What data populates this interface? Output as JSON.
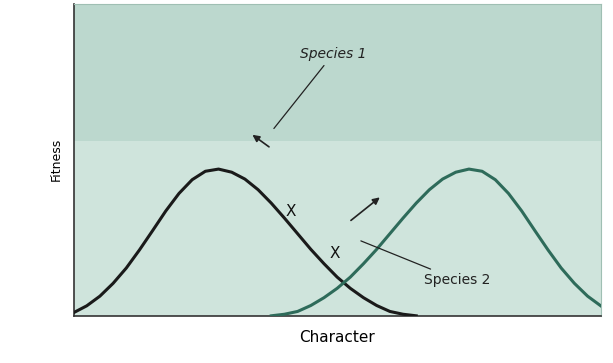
{
  "chart_data": {
    "type": "line",
    "x_label": "Character",
    "y_label": "Fitness",
    "x": [
      0,
      2.5,
      5,
      7.5,
      10,
      12.5,
      15,
      17.5,
      20,
      22.5,
      25,
      27.5,
      30,
      32.5,
      35,
      37.5,
      40,
      42.5,
      45,
      47.5,
      50,
      52.5,
      55,
      57.5,
      60,
      62.5,
      65,
      67.5,
      70,
      72.5,
      75,
      77.5,
      80,
      82.5,
      85,
      87.5,
      90,
      92.5,
      95,
      97.5,
      100
    ],
    "series": [
      {
        "name": "Species 1",
        "color": "#1a1a1a",
        "line_style": "solid",
        "values": [
          1.0,
          3.2,
          6.3,
          10.4,
          15.3,
          21.1,
          27.3,
          33.6,
          39.2,
          43.6,
          46.3,
          47.0,
          46.0,
          43.8,
          40.4,
          36.1,
          31.3,
          26.3,
          21.3,
          16.7,
          12.4,
          8.8,
          5.8,
          3.3,
          1.4,
          0.5,
          0,
          null,
          null,
          null,
          null,
          null,
          null,
          null,
          null,
          null,
          null,
          null,
          null,
          null,
          null
        ]
      },
      {
        "name": "Species 2",
        "color": "#2e6b5a",
        "line_style": "solid",
        "values": [
          null,
          null,
          null,
          null,
          null,
          null,
          null,
          null,
          null,
          null,
          null,
          null,
          null,
          null,
          null,
          0,
          0.5,
          1.4,
          3.3,
          5.8,
          8.8,
          12.4,
          16.7,
          21.3,
          26.3,
          31.3,
          36.1,
          40.4,
          43.8,
          46.0,
          47.0,
          46.3,
          43.6,
          39.2,
          33.6,
          27.3,
          21.1,
          15.3,
          10.4,
          6.3,
          3.2
        ]
      }
    ],
    "annotations": [
      "X",
      "X"
    ],
    "xlim": [
      0,
      100
    ],
    "ylim": [
      0,
      100
    ],
    "xticks": [],
    "yticks": [],
    "tick_labels": false,
    "grid": false
  }
}
